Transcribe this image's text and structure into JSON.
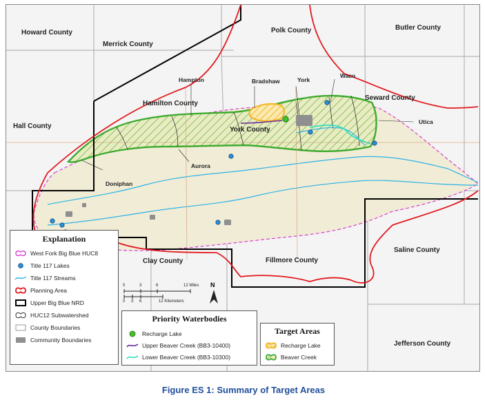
{
  "counties": {
    "howard": "Howard County",
    "merrick": "Merrick County",
    "polk": "Polk County",
    "butler": "Butler County",
    "hamilton": "Hamilton County",
    "seward": "Seward County",
    "hall": "Hall County",
    "york": "York County",
    "clay": "Clay County",
    "fillmore": "Fillmore County",
    "saline": "Saline County",
    "jefferson": "Jefferson County"
  },
  "towns": {
    "hampton": "Hampton",
    "bradshaw": "Bradshaw",
    "york": "York",
    "waco": "Waco",
    "utica": "Utica",
    "aurora": "Aurora",
    "doniphan": "Doniphan"
  },
  "explanation": {
    "title": "Explanation",
    "items": [
      "West Fork Big Blue HUC8",
      "Title 117 Lakes",
      "Title 117 Streams",
      "Planning Area",
      "Upper Big Blue NRD",
      "HUC12 Subwatershed",
      "County Boundaries",
      "Community Boundaries"
    ]
  },
  "scale": {
    "miles_ticks": [
      "0",
      "3",
      "6",
      "12 Miles"
    ],
    "km_ticks": [
      "0",
      "3",
      "6",
      "12 Kilometers"
    ],
    "north": "N"
  },
  "priority_waterbodies": {
    "title": "Priority Waterbodies",
    "items": [
      "Recharge Lake",
      "Upper Beaver Creek (BB3-10400)",
      "Lower Beaver Creek (BB3-10300)"
    ]
  },
  "target_areas": {
    "title": "Target Areas",
    "items": [
      "Recharge Lake",
      "Beaver Creek"
    ]
  },
  "caption": "Figure ES 1: Summary of Target Areas",
  "colors": {
    "huc8": "#d63fd0",
    "lakes": "#2a8fd6",
    "streams": "#2ab3e6",
    "planning_area": "#e0191f",
    "nrd": "#000000",
    "huc12": "#333333",
    "recharge_lake": "#43c12b",
    "upper_beaver": "#6b2fa0",
    "lower_beaver": "#2fe0c0",
    "target_recharge": "#f2b41e",
    "target_beaver": "#3daa2e",
    "caption": "#1f4e9c"
  }
}
